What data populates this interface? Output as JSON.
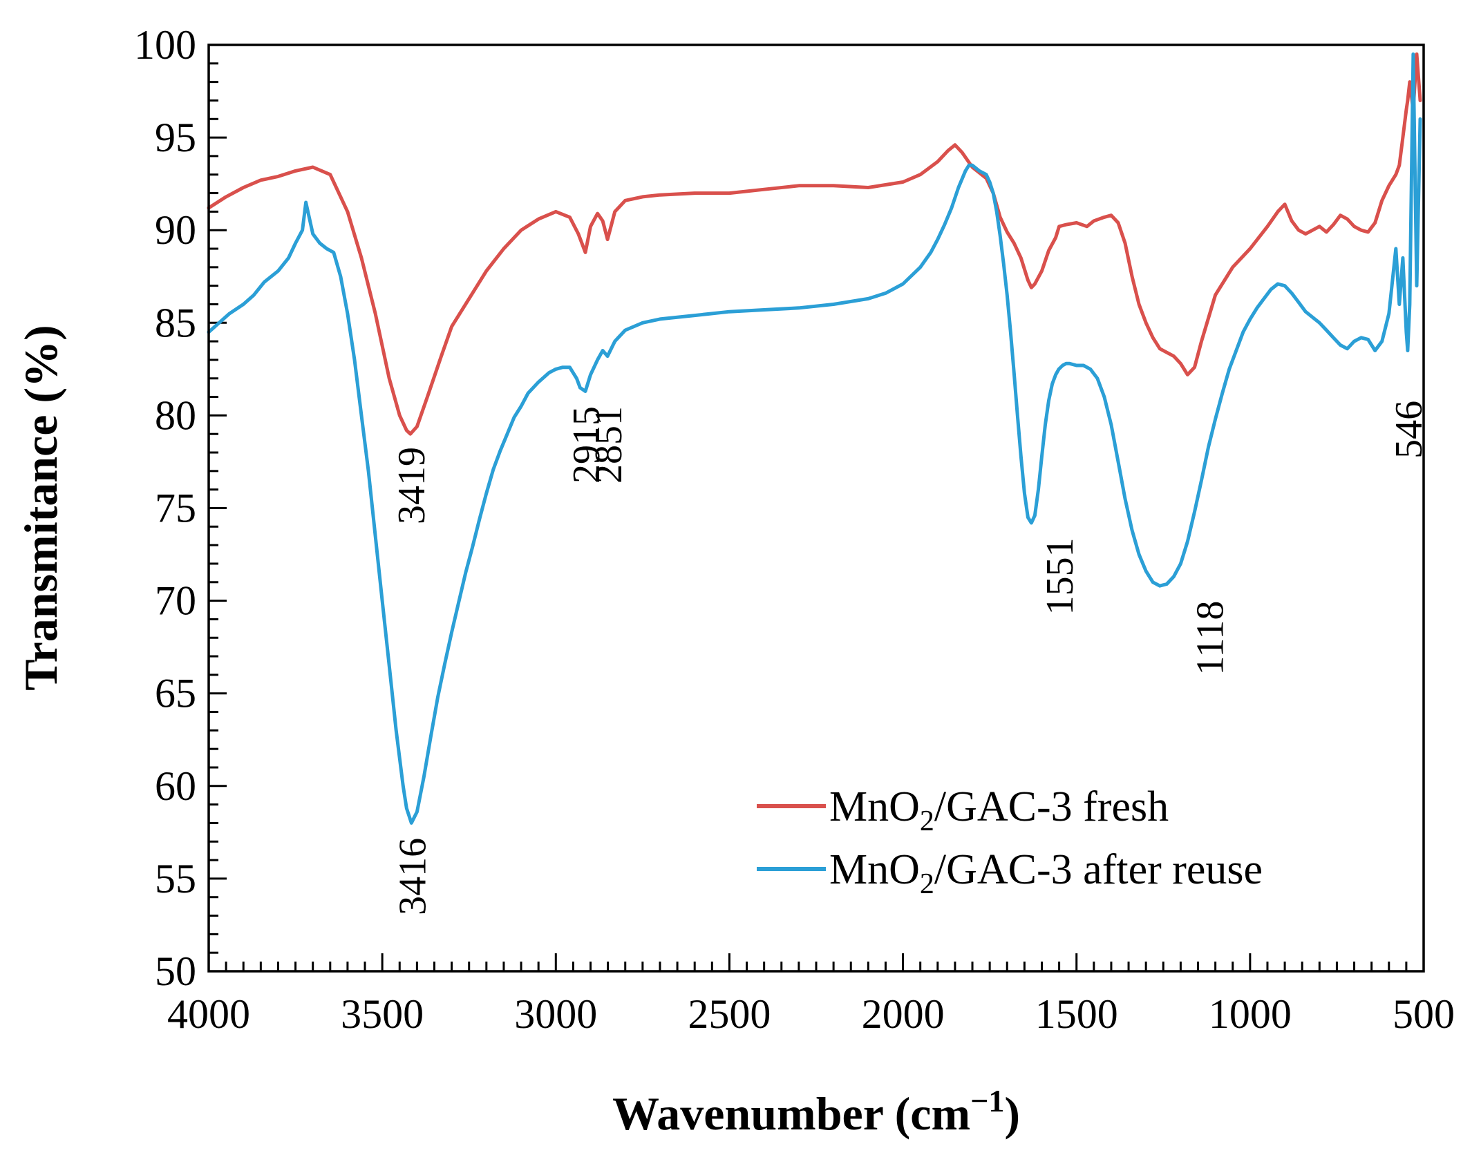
{
  "chart_data": {
    "type": "line",
    "xlabel": "Wavenumber (cm",
    "xlabel_superscript": "−1",
    "xlabel_suffix": ")",
    "ylabel": "Transmitance (%)",
    "xlim": [
      4000,
      500
    ],
    "ylim": [
      50,
      100
    ],
    "x_ticks": [
      4000,
      3500,
      3000,
      2500,
      2000,
      1500,
      1000,
      500
    ],
    "y_ticks": [
      50,
      55,
      60,
      65,
      70,
      75,
      80,
      85,
      90,
      95,
      100
    ],
    "grid": false,
    "legend_position": "bottom-right",
    "series": [
      {
        "name": "MnO2/GAC-3 fresh",
        "legend_main": "MnO",
        "legend_sub": "2",
        "legend_rest": "/GAC-3 fresh",
        "color": "#D9504C",
        "x": [
          4000,
          3950,
          3900,
          3850,
          3800,
          3750,
          3700,
          3650,
          3600,
          3560,
          3520,
          3480,
          3450,
          3430,
          3419,
          3400,
          3370,
          3330,
          3300,
          3250,
          3200,
          3150,
          3100,
          3050,
          3000,
          2960,
          2935,
          2915,
          2900,
          2880,
          2865,
          2851,
          2830,
          2800,
          2750,
          2700,
          2600,
          2500,
          2400,
          2300,
          2200,
          2100,
          2000,
          1950,
          1900,
          1870,
          1850,
          1830,
          1800,
          1780,
          1760,
          1740,
          1720,
          1700,
          1680,
          1660,
          1640,
          1630,
          1620,
          1600,
          1580,
          1560,
          1550,
          1530,
          1500,
          1470,
          1450,
          1420,
          1400,
          1380,
          1360,
          1340,
          1320,
          1300,
          1280,
          1260,
          1240,
          1220,
          1200,
          1180,
          1160,
          1140,
          1100,
          1050,
          1000,
          950,
          920,
          900,
          880,
          860,
          840,
          820,
          800,
          780,
          760,
          740,
          720,
          700,
          680,
          660,
          640,
          620,
          600,
          580,
          570,
          560,
          550,
          546,
          540,
          530,
          520,
          510
        ],
        "y": [
          91.2,
          91.8,
          92.3,
          92.7,
          92.9,
          93.2,
          93.4,
          93.0,
          91.0,
          88.5,
          85.5,
          82.0,
          80.0,
          79.2,
          79.0,
          79.4,
          81.0,
          83.2,
          84.8,
          86.3,
          87.8,
          89.0,
          90.0,
          90.6,
          91.0,
          90.7,
          89.8,
          88.8,
          90.2,
          90.9,
          90.5,
          89.5,
          91.0,
          91.6,
          91.8,
          91.9,
          92.0,
          92.0,
          92.2,
          92.4,
          92.4,
          92.3,
          92.6,
          93.0,
          93.7,
          94.3,
          94.6,
          94.2,
          93.4,
          93.1,
          92.8,
          92.0,
          90.7,
          89.9,
          89.3,
          88.5,
          87.3,
          86.9,
          87.1,
          87.8,
          88.9,
          89.6,
          90.2,
          90.3,
          90.4,
          90.2,
          90.5,
          90.7,
          90.8,
          90.4,
          89.3,
          87.5,
          86.0,
          85.0,
          84.2,
          83.6,
          83.4,
          83.2,
          82.8,
          82.2,
          82.6,
          84.0,
          86.5,
          88.0,
          89.0,
          90.2,
          91.0,
          91.4,
          90.5,
          90.0,
          89.8,
          90.0,
          90.2,
          89.9,
          90.3,
          90.8,
          90.6,
          90.2,
          90.0,
          89.9,
          90.4,
          91.6,
          92.4,
          93.0,
          93.5,
          95.0,
          96.5,
          97.0,
          98.0,
          96.5,
          99.5,
          97.0
        ]
      },
      {
        "name": "MnO2/GAC-3 after reuse",
        "legend_main": "MnO",
        "legend_sub": "2",
        "legend_rest": "/GAC-3 after reuse",
        "color": "#2B9FD6",
        "x": [
          4000,
          3970,
          3940,
          3900,
          3870,
          3840,
          3800,
          3770,
          3750,
          3730,
          3720,
          3700,
          3680,
          3660,
          3640,
          3620,
          3600,
          3580,
          3560,
          3540,
          3520,
          3500,
          3480,
          3460,
          3440,
          3430,
          3416,
          3400,
          3380,
          3360,
          3340,
          3320,
          3300,
          3280,
          3260,
          3240,
          3220,
          3200,
          3180,
          3160,
          3140,
          3120,
          3100,
          3080,
          3050,
          3020,
          3000,
          2980,
          2960,
          2940,
          2930,
          2915,
          2900,
          2880,
          2865,
          2851,
          2830,
          2800,
          2750,
          2700,
          2600,
          2500,
          2400,
          2300,
          2200,
          2100,
          2050,
          2000,
          1950,
          1920,
          1900,
          1880,
          1860,
          1840,
          1820,
          1810,
          1800,
          1780,
          1760,
          1750,
          1740,
          1730,
          1720,
          1710,
          1700,
          1690,
          1680,
          1670,
          1660,
          1650,
          1640,
          1630,
          1620,
          1610,
          1600,
          1590,
          1580,
          1570,
          1560,
          1551,
          1540,
          1530,
          1520,
          1500,
          1480,
          1460,
          1440,
          1420,
          1400,
          1380,
          1360,
          1340,
          1320,
          1300,
          1280,
          1260,
          1240,
          1220,
          1200,
          1180,
          1160,
          1140,
          1120,
          1100,
          1080,
          1060,
          1040,
          1020,
          1000,
          980,
          960,
          940,
          920,
          900,
          880,
          860,
          840,
          820,
          800,
          780,
          760,
          740,
          720,
          700,
          680,
          660,
          640,
          620,
          600,
          580,
          570,
          560,
          550,
          546,
          540,
          530,
          520,
          510
        ],
        "y": [
          84.5,
          85.0,
          85.5,
          86.0,
          86.5,
          87.2,
          87.8,
          88.5,
          89.3,
          90.0,
          91.5,
          89.8,
          89.3,
          89.0,
          88.8,
          87.5,
          85.5,
          83.0,
          80.0,
          77.0,
          73.5,
          70.0,
          66.5,
          63.0,
          60.0,
          58.8,
          58.0,
          58.6,
          60.5,
          62.7,
          64.8,
          66.6,
          68.3,
          69.9,
          71.5,
          72.9,
          74.4,
          75.8,
          77.1,
          78.1,
          79.0,
          79.9,
          80.5,
          81.2,
          81.8,
          82.3,
          82.5,
          82.6,
          82.6,
          82.0,
          81.5,
          81.3,
          82.2,
          83.0,
          83.5,
          83.2,
          84.0,
          84.6,
          85.0,
          85.2,
          85.4,
          85.6,
          85.7,
          85.8,
          86.0,
          86.3,
          86.6,
          87.1,
          88.0,
          88.8,
          89.5,
          90.3,
          91.2,
          92.3,
          93.2,
          93.5,
          93.5,
          93.2,
          93.0,
          92.6,
          92.0,
          91.0,
          89.7,
          88.2,
          86.5,
          84.5,
          82.3,
          80.0,
          77.8,
          75.8,
          74.5,
          74.2,
          74.6,
          76.0,
          77.8,
          79.5,
          80.8,
          81.7,
          82.2,
          82.5,
          82.7,
          82.8,
          82.8,
          82.7,
          82.7,
          82.5,
          82.0,
          81.0,
          79.5,
          77.5,
          75.5,
          73.8,
          72.5,
          71.6,
          71.0,
          70.8,
          70.9,
          71.3,
          72.0,
          73.2,
          74.8,
          76.5,
          78.3,
          79.8,
          81.2,
          82.5,
          83.5,
          84.5,
          85.2,
          85.8,
          86.3,
          86.8,
          87.1,
          87.0,
          86.6,
          86.1,
          85.6,
          85.3,
          85.0,
          84.6,
          84.2,
          83.8,
          83.6,
          84.0,
          84.2,
          84.1,
          83.5,
          84.0,
          85.5,
          89.0,
          86.0,
          88.5,
          84.5,
          83.5,
          86.0,
          99.5,
          87.0,
          96.0
        ]
      }
    ],
    "annotations": [
      {
        "label": "3419",
        "x": 3419,
        "y": 78.3
      },
      {
        "label": "3416",
        "x": 3416,
        "y": 57.2
      },
      {
        "label": "2915",
        "x": 2915,
        "y": 80.5
      },
      {
        "label": "2851",
        "x": 2851,
        "y": 80.5
      },
      {
        "label": "1551",
        "x": 1551,
        "y": 73.4
      },
      {
        "label": "1118",
        "x": 1118,
        "y": 70.0
      },
      {
        "label": "546",
        "x": 546,
        "y": 80.8
      }
    ]
  }
}
